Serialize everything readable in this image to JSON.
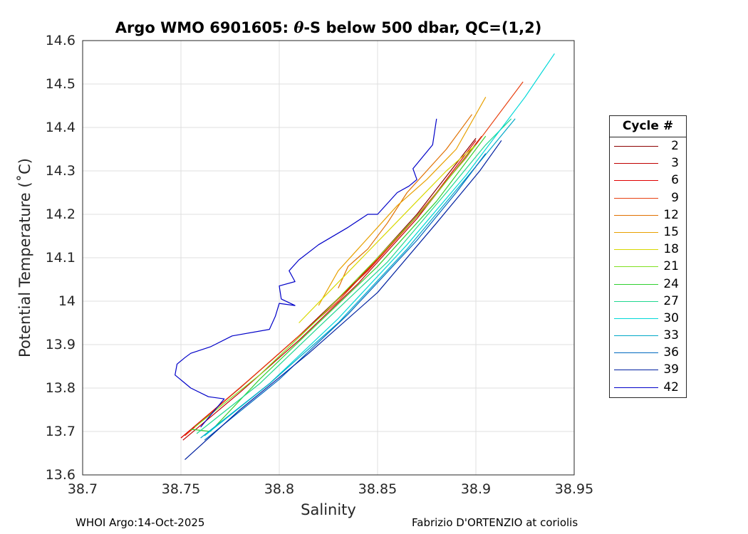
{
  "chart_data": {
    "type": "line",
    "title_main": "Argo WMO 6901605:",
    "title_theta": "θ",
    "title_rest": "-S below 500 dbar,  QC=(1,2)",
    "xlabel": "Salinity",
    "ylabel": "Potential Temperature (˚C)",
    "xlim": [
      38.7,
      38.95
    ],
    "ylim": [
      13.6,
      14.6
    ],
    "xticks": [
      "38.7",
      "38.75",
      "38.8",
      "38.85",
      "38.9",
      "38.95"
    ],
    "yticks": [
      "13.6",
      "13.7",
      "13.8",
      "13.9",
      "14",
      "14.1",
      "14.2",
      "14.3",
      "14.4",
      "14.5",
      "14.6"
    ],
    "grid": true,
    "legend_title": "Cycle #",
    "legend_placement": "right",
    "series": [
      {
        "name": "2",
        "color": "#8b0000",
        "points": [
          [
            38.75,
            13.685
          ],
          [
            38.78,
            13.8
          ],
          [
            38.81,
            13.92
          ],
          [
            38.84,
            14.05
          ],
          [
            38.87,
            14.2
          ],
          [
            38.9,
            14.375
          ]
        ]
      },
      {
        "name": "3",
        "color": "#c00000",
        "points": [
          [
            38.751,
            13.68
          ],
          [
            38.78,
            13.79
          ],
          [
            38.81,
            13.91
          ],
          [
            38.84,
            14.04
          ],
          [
            38.87,
            14.19
          ],
          [
            38.903,
            14.38
          ]
        ]
      },
      {
        "name": "6",
        "color": "#e00000",
        "points": [
          [
            38.75,
            13.685
          ],
          [
            38.785,
            13.82
          ],
          [
            38.815,
            13.94
          ],
          [
            38.845,
            14.07
          ],
          [
            38.875,
            14.22
          ],
          [
            38.9,
            14.37
          ]
        ]
      },
      {
        "name": "9",
        "color": "#e84010",
        "points": [
          [
            38.752,
            13.69
          ],
          [
            38.79,
            13.84
          ],
          [
            38.83,
            14.0
          ],
          [
            38.865,
            14.17
          ],
          [
            38.895,
            14.33
          ],
          [
            38.924,
            14.505
          ]
        ]
      },
      {
        "name": "12",
        "color": "#e07000",
        "points": [
          [
            38.83,
            14.03
          ],
          [
            38.835,
            14.08
          ],
          [
            38.84,
            14.1
          ],
          [
            38.845,
            14.12
          ],
          [
            38.855,
            14.18
          ],
          [
            38.865,
            14.25
          ],
          [
            38.875,
            14.3
          ],
          [
            38.885,
            14.35
          ],
          [
            38.898,
            14.43
          ]
        ]
      },
      {
        "name": "15",
        "color": "#e8a000",
        "points": [
          [
            38.82,
            13.99
          ],
          [
            38.83,
            14.07
          ],
          [
            38.84,
            14.12
          ],
          [
            38.85,
            14.17
          ],
          [
            38.86,
            14.22
          ],
          [
            38.875,
            14.28
          ],
          [
            38.89,
            14.35
          ],
          [
            38.905,
            14.47
          ]
        ]
      },
      {
        "name": "18",
        "color": "#d8d800",
        "points": [
          [
            38.81,
            13.95
          ],
          [
            38.825,
            14.02
          ],
          [
            38.84,
            14.09
          ],
          [
            38.855,
            14.16
          ],
          [
            38.87,
            14.23
          ],
          [
            38.885,
            14.3
          ],
          [
            38.9,
            14.36
          ]
        ]
      },
      {
        "name": "21",
        "color": "#80e020",
        "points": [
          [
            38.757,
            13.71
          ],
          [
            38.79,
            13.83
          ],
          [
            38.82,
            13.96
          ],
          [
            38.85,
            14.1
          ],
          [
            38.875,
            14.22
          ],
          [
            38.9,
            14.36
          ]
        ]
      },
      {
        "name": "24",
        "color": "#30d030",
        "points": [
          [
            38.755,
            13.705
          ],
          [
            38.765,
            13.7
          ],
          [
            38.79,
            13.82
          ],
          [
            38.82,
            13.95
          ],
          [
            38.85,
            14.08
          ],
          [
            38.88,
            14.23
          ],
          [
            38.905,
            14.38
          ]
        ]
      },
      {
        "name": "27",
        "color": "#20d890",
        "points": [
          [
            38.758,
            13.695
          ],
          [
            38.79,
            13.81
          ],
          [
            38.82,
            13.94
          ],
          [
            38.855,
            14.09
          ],
          [
            38.885,
            14.25
          ],
          [
            38.905,
            14.36
          ],
          [
            38.918,
            14.42
          ]
        ]
      },
      {
        "name": "30",
        "color": "#00d8d8",
        "points": [
          [
            38.762,
            13.69
          ],
          [
            38.795,
            13.81
          ],
          [
            38.83,
            13.96
          ],
          [
            38.865,
            14.13
          ],
          [
            38.895,
            14.29
          ],
          [
            38.925,
            14.47
          ],
          [
            38.94,
            14.57
          ]
        ]
      },
      {
        "name": "33",
        "color": "#00a8c8",
        "points": [
          [
            38.76,
            13.685
          ],
          [
            38.795,
            13.81
          ],
          [
            38.83,
            13.95
          ],
          [
            38.865,
            14.12
          ],
          [
            38.9,
            14.31
          ],
          [
            38.92,
            14.42
          ]
        ]
      },
      {
        "name": "36",
        "color": "#0068c0",
        "points": [
          [
            38.762,
            13.68
          ],
          [
            38.8,
            13.82
          ],
          [
            38.835,
            13.97
          ],
          [
            38.87,
            14.14
          ],
          [
            38.89,
            14.25
          ],
          [
            38.905,
            14.34
          ]
        ]
      },
      {
        "name": "39",
        "color": "#0020a0",
        "points": [
          [
            38.752,
            13.635
          ],
          [
            38.78,
            13.75
          ],
          [
            38.815,
            13.88
          ],
          [
            38.85,
            14.02
          ],
          [
            38.88,
            14.18
          ],
          [
            38.902,
            14.3
          ],
          [
            38.913,
            14.37
          ]
        ]
      },
      {
        "name": "42",
        "color": "#0000c8",
        "points": [
          [
            38.76,
            13.71
          ],
          [
            38.772,
            13.775
          ],
          [
            38.764,
            13.78
          ],
          [
            38.755,
            13.8
          ],
          [
            38.747,
            13.83
          ],
          [
            38.748,
            13.855
          ],
          [
            38.752,
            13.87
          ],
          [
            38.755,
            13.88
          ],
          [
            38.765,
            13.895
          ],
          [
            38.776,
            13.92
          ],
          [
            38.795,
            13.935
          ],
          [
            38.798,
            13.965
          ],
          [
            38.8,
            13.995
          ],
          [
            38.808,
            13.99
          ],
          [
            38.801,
            14.005
          ],
          [
            38.8,
            14.035
          ],
          [
            38.808,
            14.045
          ],
          [
            38.805,
            14.07
          ],
          [
            38.81,
            14.095
          ],
          [
            38.82,
            14.13
          ],
          [
            38.835,
            14.17
          ],
          [
            38.845,
            14.2
          ],
          [
            38.85,
            14.2
          ],
          [
            38.86,
            14.25
          ],
          [
            38.866,
            14.265
          ],
          [
            38.87,
            14.28
          ],
          [
            38.868,
            14.305
          ],
          [
            38.878,
            14.36
          ],
          [
            38.88,
            14.42
          ]
        ]
      }
    ]
  },
  "footer": {
    "left": "WHOI Argo:14-Oct-2025",
    "right": "Fabrizio D'ORTENZIO at coriolis"
  }
}
